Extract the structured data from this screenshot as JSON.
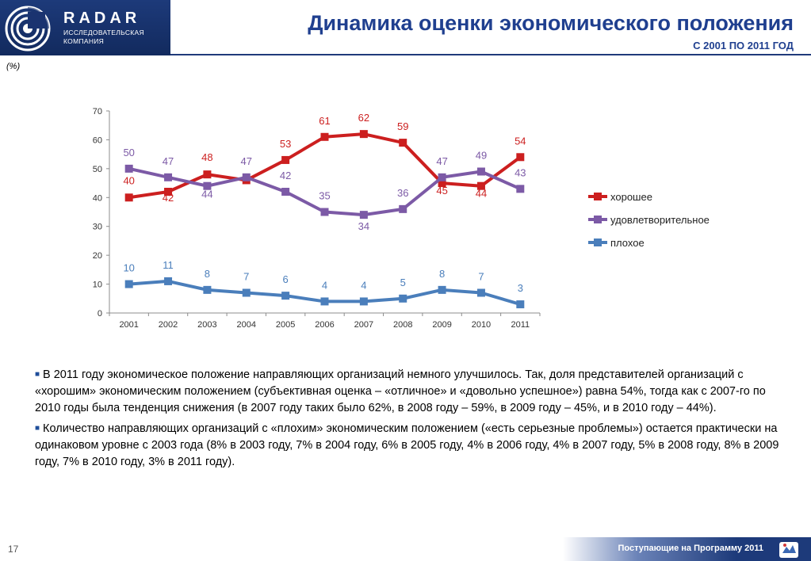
{
  "header": {
    "brand": "RADAR",
    "brand_sub_1": "ИССЛЕДОВАТЕЛЬСКАЯ",
    "brand_sub_2": "КОМПАНИЯ",
    "title": "Динамика оценки экономического положения",
    "subtitle": "С 2001 ПО 2011 ГОД"
  },
  "unit_note": "(%)",
  "chart_data": {
    "type": "line",
    "categories": [
      "2001",
      "2002",
      "2003",
      "2004",
      "2005",
      "2006",
      "2007",
      "2008",
      "2009",
      "2010",
      "2011"
    ],
    "ylim": [
      0,
      70
    ],
    "yticks": [
      0,
      10,
      20,
      30,
      40,
      50,
      60,
      70
    ],
    "grid": false,
    "legend_position": "right",
    "series": [
      {
        "name": "хорошее",
        "values": [
          40,
          42,
          48,
          46,
          53,
          61,
          62,
          59,
          45,
          44,
          54
        ],
        "color": "#cc1f1f",
        "marker": "square",
        "labels": [
          "40",
          "42",
          "48",
          "",
          "53",
          "61",
          "62",
          "59",
          "45",
          "44",
          "54"
        ]
      },
      {
        "name": "удовлетворительное",
        "values": [
          50,
          47,
          44,
          47,
          42,
          35,
          34,
          36,
          47,
          49,
          43
        ],
        "color": "#7c5aa6",
        "marker": "square",
        "labels": [
          "50",
          "47",
          "44",
          "47",
          "42",
          "35",
          "34",
          "36",
          "47",
          "49",
          "43"
        ]
      },
      {
        "name": "плохое",
        "values": [
          10,
          11,
          8,
          7,
          6,
          4,
          4,
          5,
          8,
          7,
          3
        ],
        "color": "#4a7ebb",
        "marker": "square",
        "labels": [
          "10",
          "11",
          "8",
          "7",
          "6",
          "4",
          "4",
          "5",
          "8",
          "7",
          "3"
        ]
      }
    ]
  },
  "paragraphs": [
    "В 2011 году экономическое положение направляющих организаций немного улучшилось. Так, доля представителей организаций с «хорошим» экономическим положением (субъективная оценка – «отличное» и «довольно успешное») равна 54%, тогда как с 2007-го по 2010 годы была тенденция снижения (в 2007 году таких было 62%, в 2008 году – 59%, в 2009 году – 45%, и в 2010 году – 44%).",
    "Количество направляющих организаций с «плохим» экономическим положением («есть серьезные проблемы») остается практически на одинаковом уровне с 2003 года (8% в 2003 году, 7% в 2004 году, 6% в 2005 году, 4% в 2006 году, 4% в 2007 году, 5% в 2008 году, 8% в 2009 году, 7% в 2010 году, 3% в 2011 году)."
  ],
  "footer": {
    "page_number": "17",
    "text": "Поступающие на Программу 2011"
  }
}
